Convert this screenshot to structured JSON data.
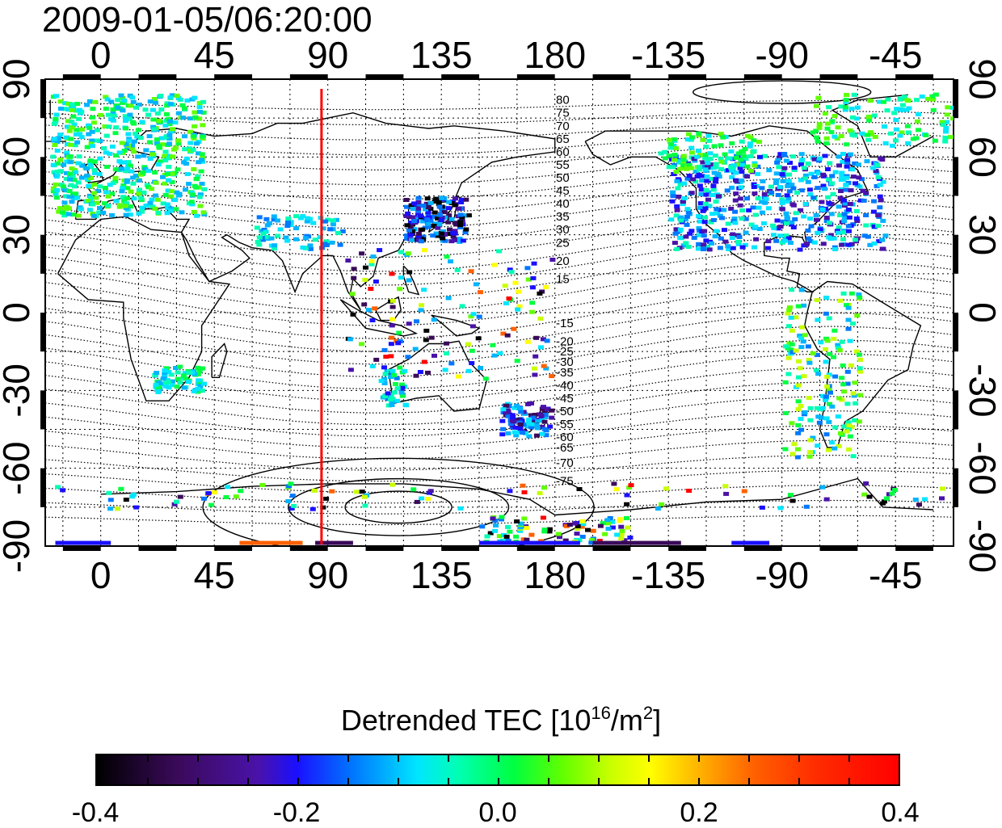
{
  "timestamp": "2009-01-05/06:20:00",
  "map": {
    "projection": "equirectangular",
    "lon_range_start": -22,
    "lon_ticks": [
      {
        "lon": 0,
        "label": "0"
      },
      {
        "lon": 45,
        "label": "45"
      },
      {
        "lon": 90,
        "label": "90"
      },
      {
        "lon": 135,
        "label": "135"
      },
      {
        "lon": 180,
        "label": "180"
      },
      {
        "lon": 225,
        "label": "-135"
      },
      {
        "lon": 270,
        "label": "-90"
      },
      {
        "lon": 315,
        "label": "-45"
      }
    ],
    "lat_ticks": [
      {
        "lat": 90,
        "label": "90"
      },
      {
        "lat": 60,
        "label": "60"
      },
      {
        "lat": 30,
        "label": "30"
      },
      {
        "lat": 0,
        "label": "0"
      },
      {
        "lat": -30,
        "label": "-30"
      },
      {
        "lat": -60,
        "label": "-60"
      },
      {
        "lat": -90,
        "label": "-90"
      }
    ],
    "meridian_line": {
      "lon": 87.5,
      "color": "#ff0000"
    },
    "contour_labels_north": [
      {
        "lat": 82,
        "label": "80"
      },
      {
        "lat": 77,
        "label": "75"
      },
      {
        "lat": 72,
        "label": "70"
      },
      {
        "lat": 67,
        "label": "65"
      },
      {
        "lat": 62,
        "label": "60"
      },
      {
        "lat": 57,
        "label": "55"
      },
      {
        "lat": 52,
        "label": "50"
      },
      {
        "lat": 47,
        "label": "45"
      },
      {
        "lat": 42,
        "label": "40"
      },
      {
        "lat": 37,
        "label": "35"
      },
      {
        "lat": 32,
        "label": "30"
      },
      {
        "lat": 27,
        "label": "25"
      },
      {
        "lat": 20,
        "label": "20"
      },
      {
        "lat": 13,
        "label": "15"
      }
    ],
    "contour_labels_south": [
      {
        "lat": -4,
        "label": "-15"
      },
      {
        "lat": -11,
        "label": "-20"
      },
      {
        "lat": -15,
        "label": "-25"
      },
      {
        "lat": -19,
        "label": "-30"
      },
      {
        "lat": -23,
        "label": "-35"
      },
      {
        "lat": -28,
        "label": "-40"
      },
      {
        "lat": -33,
        "label": "-45"
      },
      {
        "lat": -38,
        "label": "-50"
      },
      {
        "lat": -43,
        "label": "-55"
      },
      {
        "lat": -48,
        "label": "-60"
      },
      {
        "lat": -52,
        "label": "-65"
      },
      {
        "lat": -58,
        "label": "-70"
      },
      {
        "lat": -65,
        "label": "-75"
      }
    ],
    "data_colors": [
      "#000000",
      "#3a0a5a",
      "#4a12a8",
      "#1a10ff",
      "#0078ff",
      "#00b4ff",
      "#00e6ff",
      "#00ffb4",
      "#00ff40",
      "#60ff00",
      "#c8ff00",
      "#ffff00",
      "#ff6000",
      "#ff0000"
    ]
  },
  "colorbar": {
    "title_main": "Detrended TEC  [10",
    "title_exp1": "16",
    "title_mid": "/m",
    "title_exp2": "2",
    "title_end": "]",
    "min": -0.4,
    "max": 0.4,
    "tick_labels": [
      {
        "value": -0.4,
        "label": "-0.4"
      },
      {
        "value": -0.2,
        "label": "-0.2"
      },
      {
        "value": 0.0,
        "label": "0.0"
      },
      {
        "value": 0.2,
        "label": "0.2"
      },
      {
        "value": 0.4,
        "label": "0.4"
      }
    ]
  }
}
